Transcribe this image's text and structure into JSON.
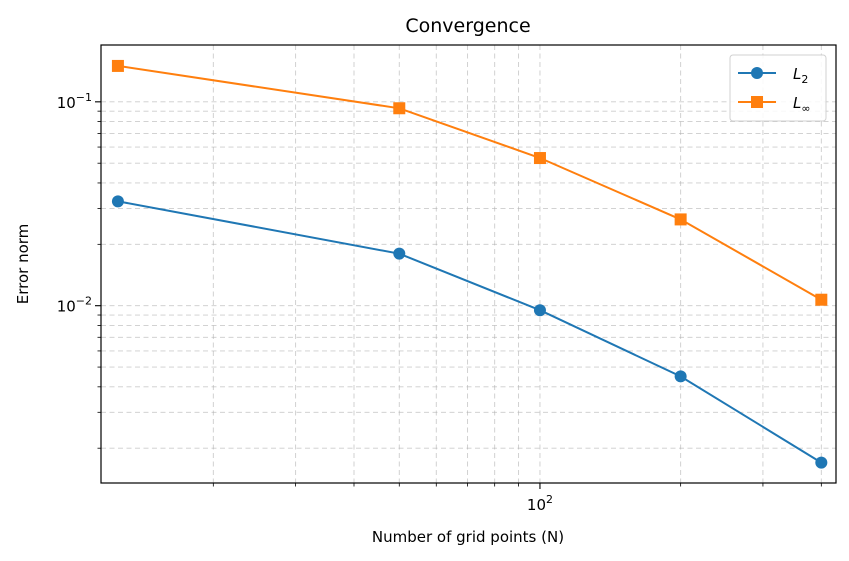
{
  "chart_data": {
    "type": "line",
    "title": "Convergence",
    "xlabel": "Number of grid points (N)",
    "ylabel": "Error norm",
    "x_scale": "log",
    "y_scale": "log",
    "xlim": [
      11.5,
      430
    ],
    "ylim": [
      0.00135,
      0.19
    ],
    "grid": true,
    "legend_position": "top-right",
    "x_major_ticks": [
      {
        "value": 100,
        "label": "10",
        "exp": "2"
      }
    ],
    "y_major_ticks": [
      {
        "value": 0.1,
        "label": "10",
        "exp": "−1"
      },
      {
        "value": 0.01,
        "label": "10",
        "exp": "−2"
      }
    ],
    "x": [
      12.5,
      50,
      100,
      200,
      400
    ],
    "series": [
      {
        "name": "L",
        "subscript": "2",
        "color": "#1f77b4",
        "marker": "circle",
        "values": [
          0.0325,
          0.018,
          0.0095,
          0.0045,
          0.0017
        ]
      },
      {
        "name": "L",
        "subscript": "∞",
        "color": "#ff7f0e",
        "marker": "square",
        "values": [
          0.15,
          0.093,
          0.053,
          0.0265,
          0.0107
        ]
      }
    ]
  }
}
